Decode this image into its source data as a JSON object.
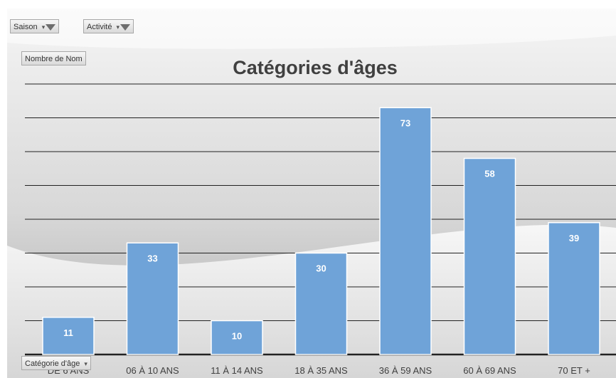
{
  "filters": {
    "season_label": "Saison",
    "activity_label": "Activité",
    "value_field_label": "Nombre de Nom",
    "axis_field_label": "Catégorie d'âge"
  },
  "colors": {
    "bar": "#6fa3d8",
    "bar_edge": "#ffffff",
    "background_light": "#f3f3f3",
    "background_dark": "#b4b4b4",
    "gridline": "#222222",
    "title": "#404040",
    "label": "#ffffff"
  },
  "chart_data": {
    "type": "bar",
    "title": "Catégories d'âges",
    "xlabel": "",
    "ylabel": "",
    "categories": [
      "DE 6 ANS",
      "06 À 10 ANS",
      "11 À 14 ANS",
      "18 À 35 ANS",
      "36 À 59 ANS",
      "60 À 69 ANS",
      "70 ET +"
    ],
    "values": [
      11,
      33,
      10,
      30,
      73,
      58,
      39
    ],
    "ylim": [
      0,
      80
    ],
    "gridlines": [
      0,
      10,
      20,
      30,
      40,
      50,
      60,
      70,
      80
    ],
    "grid": true,
    "data_labels": true,
    "legend": "none"
  }
}
